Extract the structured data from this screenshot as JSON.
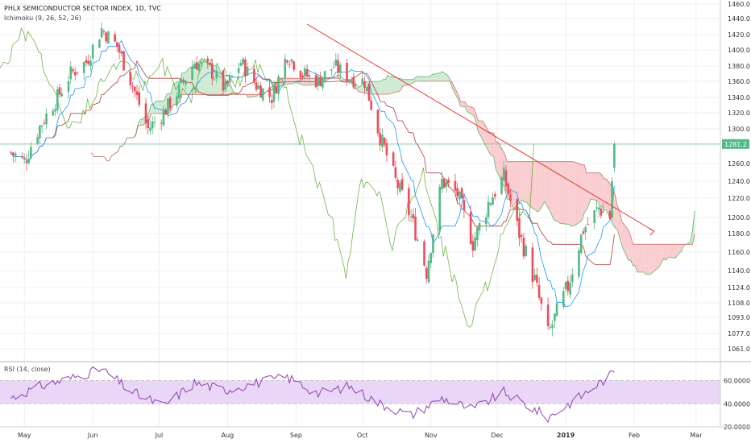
{
  "header": {
    "title": "PHLX SEMICONDUCTOR SECTOR INDEX, 1D, TVC",
    "indicator": "Ichimoku (9, 26, 52, 26)"
  },
  "rsi_panel": {
    "label": "RSI (14, close)"
  },
  "colors": {
    "up": "#53b987",
    "down": "#eb4d5c",
    "tenkan": "#2196f3",
    "kijun": "#991515",
    "chikou": "#459915",
    "cloud_bull": "#cbe8cf",
    "cloud_bear": "#f9c9cc",
    "trendline": "#e53935",
    "price_line": "#53b987",
    "rsi": "#8e44ad",
    "rsi_band": "#ead6f7"
  },
  "chart_data": [
    {
      "type": "candlestick",
      "title": "PHLX SEMICONDUCTOR SECTOR INDEX, 1D, TVC",
      "xlabel": "",
      "ylabel": "",
      "x_ticks": [
        "May",
        "Jun",
        "Jul",
        "Aug",
        "Sep",
        "Oct",
        "Nov",
        "Dec",
        "2019",
        "Feb",
        "Mar"
      ],
      "y_ticks": [
        "1460.0",
        "1440.0",
        "1420.0",
        "1400.0",
        "1380.0",
        "1360.0",
        "1340.0",
        "1320.0",
        "1300.0",
        "1281.2",
        "1260.0",
        "1240.0",
        "1220.0",
        "1200.0",
        "1180.0",
        "1160.0",
        "1140.0",
        "1124.0",
        "1108.0",
        "1093.0",
        "1077.0",
        "1061.0"
      ],
      "ylim": [
        1052,
        1466
      ],
      "last_price": 1281.2,
      "grid": true,
      "close_series": [
        {
          "date": "2018-04-25",
          "value": 1272
        },
        {
          "date": "2018-05-01",
          "value": 1262
        },
        {
          "date": "2018-05-08",
          "value": 1303
        },
        {
          "date": "2018-05-15",
          "value": 1335
        },
        {
          "date": "2018-05-22",
          "value": 1370
        },
        {
          "date": "2018-05-29",
          "value": 1385
        },
        {
          "date": "2018-06-05",
          "value": 1427
        },
        {
          "date": "2018-06-12",
          "value": 1405
        },
        {
          "date": "2018-06-19",
          "value": 1355
        },
        {
          "date": "2018-06-26",
          "value": 1300
        },
        {
          "date": "2018-07-03",
          "value": 1320
        },
        {
          "date": "2018-07-10",
          "value": 1350
        },
        {
          "date": "2018-07-17",
          "value": 1385
        },
        {
          "date": "2018-07-24",
          "value": 1375
        },
        {
          "date": "2018-07-31",
          "value": 1350
        },
        {
          "date": "2018-08-07",
          "value": 1385
        },
        {
          "date": "2018-08-14",
          "value": 1355
        },
        {
          "date": "2018-08-21",
          "value": 1340
        },
        {
          "date": "2018-08-28",
          "value": 1395
        },
        {
          "date": "2018-09-04",
          "value": 1370
        },
        {
          "date": "2018-09-11",
          "value": 1360
        },
        {
          "date": "2018-09-18",
          "value": 1380
        },
        {
          "date": "2018-09-25",
          "value": 1365
        },
        {
          "date": "2018-10-02",
          "value": 1360
        },
        {
          "date": "2018-10-09",
          "value": 1290
        },
        {
          "date": "2018-10-16",
          "value": 1240
        },
        {
          "date": "2018-10-23",
          "value": 1200
        },
        {
          "date": "2018-10-30",
          "value": 1140
        },
        {
          "date": "2018-11-06",
          "value": 1240
        },
        {
          "date": "2018-11-13",
          "value": 1225
        },
        {
          "date": "2018-11-20",
          "value": 1170
        },
        {
          "date": "2018-11-27",
          "value": 1215
        },
        {
          "date": "2018-12-04",
          "value": 1245
        },
        {
          "date": "2018-12-11",
          "value": 1180
        },
        {
          "date": "2018-12-18",
          "value": 1130
        },
        {
          "date": "2018-12-24",
          "value": 1075
        },
        {
          "date": "2019-01-02",
          "value": 1125
        },
        {
          "date": "2019-01-09",
          "value": 1185
        },
        {
          "date": "2019-01-16",
          "value": 1210
        },
        {
          "date": "2019-01-21",
          "value": 1200
        },
        {
          "date": "2019-01-23",
          "value": 1281.2
        }
      ]
    },
    {
      "type": "line",
      "title": "RSI (14, close)",
      "xlabel": "",
      "ylabel": "",
      "y_ticks": [
        "60.0000",
        "40.0000",
        "20.0000"
      ],
      "ylim": [
        20,
        75
      ],
      "band": [
        40,
        60
      ],
      "grid": true,
      "series": [
        {
          "date": "2018-04-25",
          "value": 45
        },
        {
          "date": "2018-05-08",
          "value": 55
        },
        {
          "date": "2018-05-22",
          "value": 62
        },
        {
          "date": "2018-06-05",
          "value": 70
        },
        {
          "date": "2018-06-19",
          "value": 50
        },
        {
          "date": "2018-07-03",
          "value": 38
        },
        {
          "date": "2018-07-17",
          "value": 58
        },
        {
          "date": "2018-07-31",
          "value": 52
        },
        {
          "date": "2018-08-14",
          "value": 58
        },
        {
          "date": "2018-08-28",
          "value": 63
        },
        {
          "date": "2018-09-11",
          "value": 49
        },
        {
          "date": "2018-09-25",
          "value": 55
        },
        {
          "date": "2018-10-09",
          "value": 40
        },
        {
          "date": "2018-10-23",
          "value": 30
        },
        {
          "date": "2018-11-06",
          "value": 45
        },
        {
          "date": "2018-11-20",
          "value": 35
        },
        {
          "date": "2018-12-04",
          "value": 50
        },
        {
          "date": "2018-12-18",
          "value": 35
        },
        {
          "date": "2018-12-24",
          "value": 28
        },
        {
          "date": "2019-01-09",
          "value": 48
        },
        {
          "date": "2019-01-23",
          "value": 67
        }
      ]
    }
  ]
}
